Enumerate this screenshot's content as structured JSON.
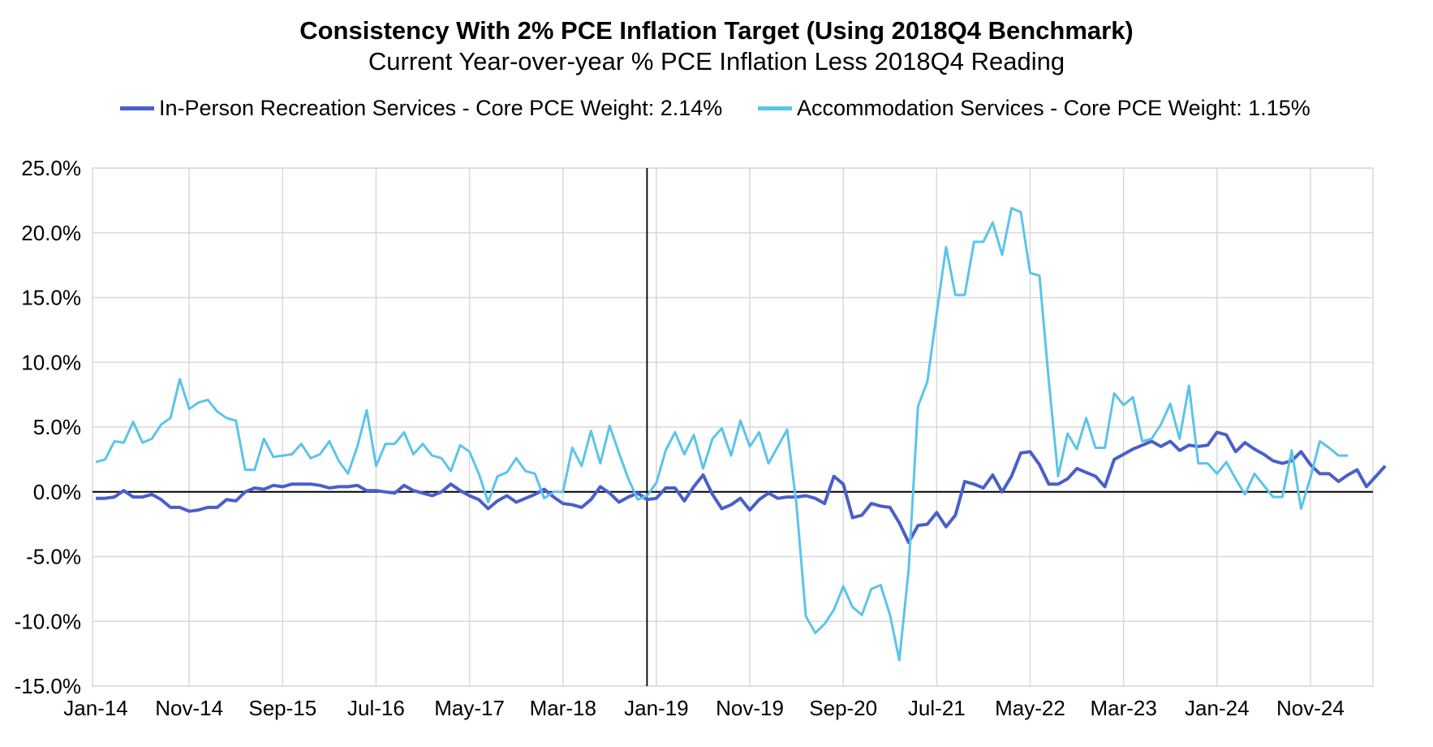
{
  "chart_data": {
    "type": "line",
    "title": "Consistency With 2% PCE Inflation Target (Using 2018Q4 Benchmark)",
    "subtitle": "Current Year-over-year % PCE Inflation Less 2018Q4 Reading",
    "legend_position": "top",
    "grid": true,
    "reference_line": "2018-12",
    "x_start": "2014-01",
    "x_tick_labels": [
      "Jan-14",
      "Nov-14",
      "Sep-15",
      "Jul-16",
      "May-17",
      "Mar-18",
      "Jan-19",
      "Nov-19",
      "Sep-20",
      "Jul-21",
      "May-22",
      "Mar-23",
      "Jan-24",
      "Nov-24"
    ],
    "y_tick_labels": [
      "25.0%",
      "20.0%",
      "15.0%",
      "10.0%",
      "5.0%",
      "0.0%",
      "-5.0%",
      "-10.0%",
      "-15.0%"
    ],
    "ylim": [
      -15,
      25
    ],
    "y_step": 5,
    "series": [
      {
        "name": "In-Person Recreation Services - Core PCE Weight: 2.14%",
        "color": "#4a5fc9",
        "values": [
          -0.5,
          -0.5,
          -0.4,
          0.1,
          -0.4,
          -0.4,
          -0.2,
          -0.6,
          -1.2,
          -1.2,
          -1.5,
          -1.4,
          -1.2,
          -1.2,
          -0.6,
          -0.7,
          0.0,
          0.3,
          0.2,
          0.5,
          0.4,
          0.6,
          0.6,
          0.6,
          0.5,
          0.3,
          0.4,
          0.4,
          0.5,
          0.1,
          0.1,
          0.0,
          -0.1,
          0.5,
          0.1,
          -0.1,
          -0.3,
          0.0,
          0.6,
          0.1,
          -0.3,
          -0.6,
          -1.3,
          -0.7,
          -0.3,
          -0.8,
          -0.5,
          -0.2,
          0.2,
          -0.4,
          -0.9,
          -1.0,
          -1.2,
          -0.6,
          0.4,
          -0.1,
          -0.8,
          -0.4,
          -0.1,
          -0.6,
          -0.5,
          0.3,
          0.3,
          -0.7,
          0.4,
          1.3,
          -0.2,
          -1.3,
          -1.0,
          -0.5,
          -1.4,
          -0.6,
          -0.1,
          -0.5,
          -0.4,
          -0.4,
          -0.3,
          -0.5,
          -0.9,
          1.2,
          0.6,
          -2.0,
          -1.8,
          -0.9,
          -1.1,
          -1.2,
          -2.4,
          -3.9,
          -2.6,
          -2.5,
          -1.6,
          -2.7,
          -1.8,
          0.8,
          0.6,
          0.3,
          1.3,
          0.0,
          1.2,
          3.0,
          3.1,
          2.1,
          0.6,
          0.6,
          1.0,
          1.8,
          1.5,
          1.2,
          0.4,
          2.5,
          2.9,
          3.3,
          3.6,
          3.9,
          3.5,
          3.9,
          3.2,
          3.6,
          3.5,
          3.6,
          4.6,
          4.4,
          3.1,
          3.8,
          3.3,
          2.9,
          2.4,
          2.2,
          2.4,
          3.1,
          2.1,
          1.4,
          1.4,
          0.8,
          1.3,
          1.7,
          0.4,
          1.2,
          2.0
        ]
      },
      {
        "name": "Accommodation Services - Core PCE Weight: 1.15%",
        "color": "#5bc4ea",
        "values": [
          2.3,
          2.5,
          3.9,
          3.8,
          5.4,
          3.8,
          4.1,
          5.2,
          5.7,
          8.7,
          6.4,
          6.9,
          7.1,
          6.2,
          5.7,
          5.5,
          1.7,
          1.7,
          4.1,
          2.7,
          2.8,
          2.9,
          3.7,
          2.6,
          2.9,
          3.9,
          2.4,
          1.4,
          3.5,
          6.3,
          2.0,
          3.7,
          3.7,
          4.6,
          2.9,
          3.7,
          2.8,
          2.6,
          1.6,
          3.6,
          3.1,
          1.4,
          -0.8,
          1.2,
          1.5,
          2.6,
          1.6,
          1.4,
          -0.5,
          0.0,
          0.0,
          3.4,
          2.0,
          4.7,
          2.2,
          5.1,
          3.0,
          1.0,
          -0.6,
          -0.3,
          0.7,
          3.2,
          4.6,
          2.9,
          4.4,
          1.8,
          4.1,
          4.9,
          2.8,
          5.5,
          3.5,
          4.6,
          2.2,
          3.5,
          4.8,
          -1.0,
          -9.6,
          -10.9,
          -10.2,
          -9.1,
          -7.3,
          -8.9,
          -9.5,
          -7.5,
          -7.2,
          -9.5,
          -13.0,
          -6.0,
          6.6,
          8.5,
          13.8,
          18.9,
          15.2,
          15.2,
          19.3,
          19.3,
          20.8,
          18.3,
          21.9,
          21.6,
          16.9,
          16.7,
          8.6,
          1.2,
          4.5,
          3.3,
          5.7,
          3.4,
          3.4,
          7.6,
          6.7,
          7.3,
          3.9,
          4.1,
          5.2,
          6.8,
          4.1,
          8.2,
          2.2,
          2.2,
          1.4,
          2.3,
          1.0,
          -0.2,
          1.4,
          0.5,
          -0.4,
          -0.4,
          3.2,
          -1.3,
          1.1,
          3.9,
          3.4,
          2.8,
          2.8
        ]
      }
    ]
  }
}
